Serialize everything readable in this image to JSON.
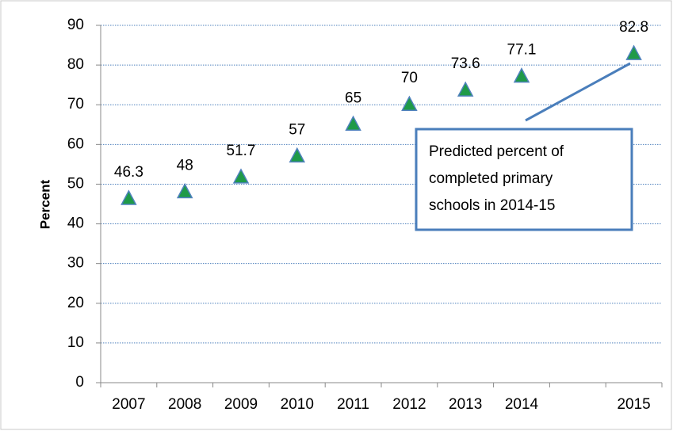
{
  "chart_data": {
    "type": "scatter",
    "y_label": "Percent",
    "categories": [
      "2007",
      "2008",
      "2009",
      "2010",
      "2011",
      "2012",
      "2013",
      "2014",
      null,
      "2015"
    ],
    "values": [
      46.3,
      48,
      51.7,
      57,
      65,
      70,
      73.6,
      77.1,
      null,
      82.8
    ],
    "marker_fill": "#1f9a48",
    "marker_edge": "#4f81bd",
    "ylim": [
      0,
      90
    ],
    "yticks": [
      0,
      10,
      20,
      30,
      40,
      50,
      60,
      70,
      80,
      90
    ],
    "grid": true,
    "grid_color": "#4f81bd",
    "annotation": {
      "lines": [
        "Predicted percent of",
        "completed primary",
        "schools in 2014-15"
      ],
      "border_color": "#4a7ebb"
    }
  }
}
